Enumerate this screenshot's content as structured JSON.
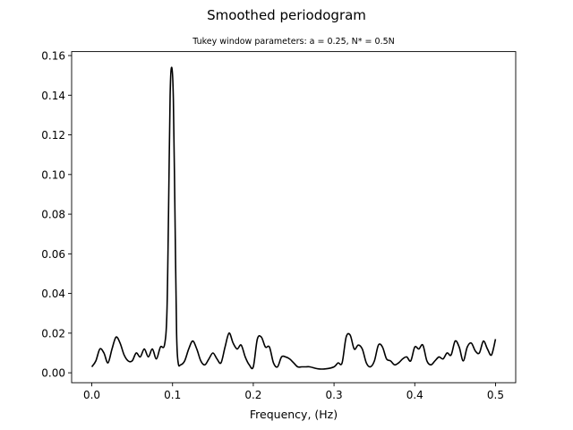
{
  "chart_data": {
    "type": "line",
    "title": "Smoothed periodogram",
    "subtitle": "Tukey window parameters: a = 0.25, N* = 0.5N",
    "xlabel": "Frequency, (Hz)",
    "ylabel": "",
    "xlim": [
      -0.025,
      0.525
    ],
    "ylim": [
      -0.005,
      0.162
    ],
    "xticks": [
      0.0,
      0.1,
      0.2,
      0.3,
      0.4,
      0.5
    ],
    "xtick_labels": [
      "0.0",
      "0.1",
      "0.2",
      "0.3",
      "0.4",
      "0.5"
    ],
    "yticks": [
      0.0,
      0.02,
      0.04,
      0.06,
      0.08,
      0.1,
      0.12,
      0.14,
      0.16
    ],
    "ytick_labels": [
      "0.00",
      "0.02",
      "0.04",
      "0.06",
      "0.08",
      "0.10",
      "0.12",
      "0.14",
      "0.16"
    ],
    "grid": false,
    "line_color": "#000000",
    "series": [
      {
        "x": [
          0.0,
          0.005,
          0.01,
          0.015,
          0.02,
          0.025,
          0.03,
          0.035,
          0.04,
          0.045,
          0.05,
          0.055,
          0.06,
          0.065,
          0.07,
          0.075,
          0.08,
          0.085,
          0.09,
          0.093,
          0.095,
          0.097,
          0.099,
          0.101,
          0.103,
          0.105,
          0.107,
          0.11,
          0.115,
          0.12,
          0.125,
          0.13,
          0.135,
          0.14,
          0.145,
          0.15,
          0.155,
          0.16,
          0.165,
          0.17,
          0.175,
          0.18,
          0.185,
          0.19,
          0.195,
          0.2,
          0.205,
          0.21,
          0.215,
          0.22,
          0.225,
          0.23,
          0.235,
          0.24,
          0.245,
          0.25,
          0.255,
          0.26,
          0.265,
          0.27,
          0.28,
          0.29,
          0.3,
          0.305,
          0.31,
          0.315,
          0.32,
          0.325,
          0.33,
          0.335,
          0.34,
          0.345,
          0.35,
          0.355,
          0.36,
          0.365,
          0.37,
          0.375,
          0.38,
          0.385,
          0.39,
          0.395,
          0.4,
          0.405,
          0.41,
          0.415,
          0.42,
          0.425,
          0.43,
          0.435,
          0.44,
          0.445,
          0.45,
          0.455,
          0.46,
          0.465,
          0.47,
          0.475,
          0.48,
          0.485,
          0.49,
          0.495,
          0.5
        ],
        "y": [
          0.003,
          0.006,
          0.012,
          0.01,
          0.005,
          0.012,
          0.018,
          0.015,
          0.009,
          0.006,
          0.006,
          0.01,
          0.008,
          0.012,
          0.008,
          0.012,
          0.007,
          0.013,
          0.014,
          0.03,
          0.08,
          0.14,
          0.154,
          0.138,
          0.08,
          0.02,
          0.005,
          0.004,
          0.006,
          0.012,
          0.016,
          0.012,
          0.006,
          0.004,
          0.007,
          0.01,
          0.007,
          0.005,
          0.013,
          0.02,
          0.015,
          0.012,
          0.014,
          0.008,
          0.004,
          0.003,
          0.017,
          0.018,
          0.013,
          0.013,
          0.005,
          0.003,
          0.008,
          0.008,
          0.007,
          0.005,
          0.003,
          0.003,
          0.003,
          0.003,
          0.002,
          0.002,
          0.003,
          0.005,
          0.005,
          0.018,
          0.019,
          0.012,
          0.014,
          0.012,
          0.005,
          0.003,
          0.006,
          0.014,
          0.013,
          0.007,
          0.006,
          0.004,
          0.005,
          0.007,
          0.008,
          0.006,
          0.013,
          0.012,
          0.014,
          0.006,
          0.004,
          0.006,
          0.008,
          0.007,
          0.01,
          0.009,
          0.016,
          0.013,
          0.006,
          0.013,
          0.015,
          0.011,
          0.01,
          0.016,
          0.012,
          0.009,
          0.017
        ]
      }
    ]
  }
}
